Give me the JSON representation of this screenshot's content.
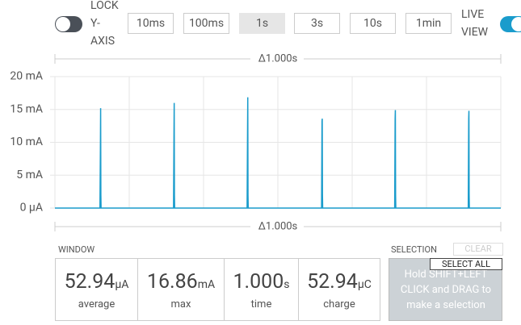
{
  "controls": {
    "lock_label": "LOCK Y-AXIS",
    "windows": [
      "10ms",
      "100ms",
      "1s",
      "3s",
      "10s",
      "1min"
    ],
    "live_label": "LIVE VIEW"
  },
  "chart_data": {
    "type": "line",
    "color": "#1a9ccc",
    "annotations": [
      "Δ1.000s",
      "Δ1.000s"
    ],
    "x": [
      0,
      0.101,
      0.102,
      0.1025,
      0.103,
      0.1035,
      0.266,
      0.267,
      0.2675,
      0.268,
      0.2685,
      0.431,
      0.432,
      0.4325,
      0.433,
      0.4335,
      0.598,
      0.599,
      0.5995,
      0.6,
      0.6005,
      0.762,
      0.763,
      0.7635,
      0.764,
      0.7645,
      0.927,
      0.928,
      0.9285,
      0.929,
      0.9295,
      1
    ],
    "values": [
      0,
      0,
      9.0,
      15.2,
      2.0,
      0,
      0,
      11.2,
      16.0,
      2.0,
      0,
      0,
      11.4,
      16.86,
      2.0,
      0,
      0,
      13.2,
      13.6,
      2.0,
      0,
      0,
      13.6,
      14.9,
      2.0,
      0,
      0,
      13.6,
      14.8,
      2.0,
      0,
      0
    ],
    "xlim": [
      0,
      1
    ],
    "ylim": [
      0,
      20
    ],
    "yticks": [
      {
        "value": 0,
        "label": "0 µA"
      },
      {
        "value": 5,
        "label": "5 mA"
      },
      {
        "value": 10,
        "label": "10 mA"
      },
      {
        "value": 15,
        "label": "15 mA"
      },
      {
        "value": 20,
        "label": "20 mA"
      }
    ],
    "grid": true
  },
  "window": {
    "title": "WINDOW",
    "stats": [
      {
        "value": "52.94",
        "unit": "μA",
        "label": "average"
      },
      {
        "value": "16.86",
        "unit": "mA",
        "label": "max"
      },
      {
        "value": "1.000",
        "unit": "s",
        "label": "time"
      },
      {
        "value": "52.94",
        "unit": "μC",
        "label": "charge"
      }
    ]
  },
  "selection": {
    "title": "SELECTION",
    "clear": "CLEAR",
    "select_all": "SELECT ALL",
    "hint": "Hold SHIFT+LEFT CLICK and DRAG to make a selection"
  }
}
